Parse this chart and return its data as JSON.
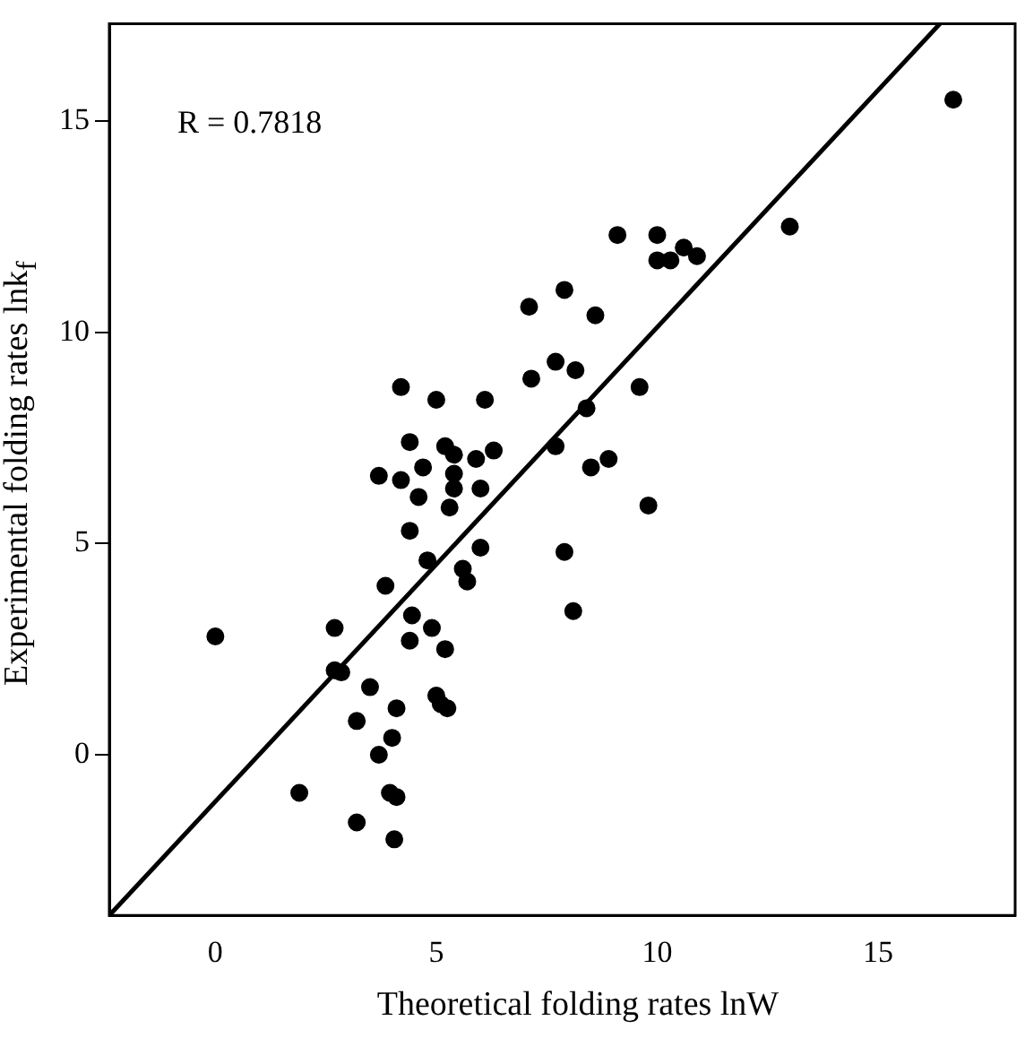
{
  "chart_data": {
    "type": "scatter",
    "xlabel": "Theoretical folding rates lnW",
    "ylabel": "Experimental folding rates lnk$_{f}$",
    "annotations": [
      "R = 0.7818"
    ],
    "xlim": [
      -2.4,
      18.1
    ],
    "ylim": [
      -3.8,
      17.3
    ],
    "xticks": [
      0,
      5,
      10,
      15
    ],
    "yticks": [
      0,
      5,
      10,
      15
    ],
    "grid": false,
    "legend": false,
    "marker": "circle",
    "series": [
      {
        "color": "#000000",
        "x": [
          16.7,
          13.0,
          9.1,
          10.0,
          10.0,
          10.3,
          10.6,
          10.9,
          7.1,
          7.9,
          8.6,
          7.15,
          7.7,
          8.15,
          9.6,
          4.2,
          5.0,
          6.1,
          8.4,
          7.7,
          4.4,
          5.2,
          5.4,
          5.9,
          6.3,
          4.7,
          3.7,
          4.2,
          5.4,
          5.4,
          6.0,
          4.6,
          8.5,
          8.9,
          5.3,
          9.8,
          4.4,
          6.0,
          7.9,
          4.8,
          5.6,
          5.7,
          3.85,
          8.1,
          4.45,
          4.9,
          2.7,
          0.0,
          4.4,
          5.2,
          2.7,
          2.85,
          3.5,
          5.0,
          5.1,
          5.25,
          4.1,
          3.2,
          4.0,
          3.7,
          1.9,
          3.95,
          4.1,
          3.2,
          4.05
        ],
        "values": [
          15.5,
          12.5,
          12.3,
          12.3,
          11.7,
          11.7,
          12.0,
          11.8,
          10.6,
          11.0,
          10.4,
          8.9,
          9.3,
          9.1,
          8.7,
          8.7,
          8.4,
          8.4,
          8.2,
          7.3,
          7.4,
          7.3,
          7.1,
          7.0,
          7.2,
          6.8,
          6.6,
          6.5,
          6.65,
          6.3,
          6.3,
          6.1,
          6.8,
          7.0,
          5.85,
          5.9,
          5.3,
          4.9,
          4.8,
          4.6,
          4.4,
          4.1,
          4.0,
          3.4,
          3.3,
          3.0,
          3.0,
          2.8,
          2.7,
          2.5,
          2.0,
          1.95,
          1.6,
          1.4,
          1.2,
          1.1,
          1.1,
          0.8,
          0.4,
          0.0,
          -0.9,
          -0.9,
          -1.0,
          -1.6,
          -2.0
        ]
      },
      {
        "type": "line",
        "color": "#000000",
        "marker": "none",
        "line_style": "solid",
        "x": [
          -2.4,
          16.4
        ],
        "values": [
          -3.8,
          17.3
        ]
      }
    ]
  }
}
